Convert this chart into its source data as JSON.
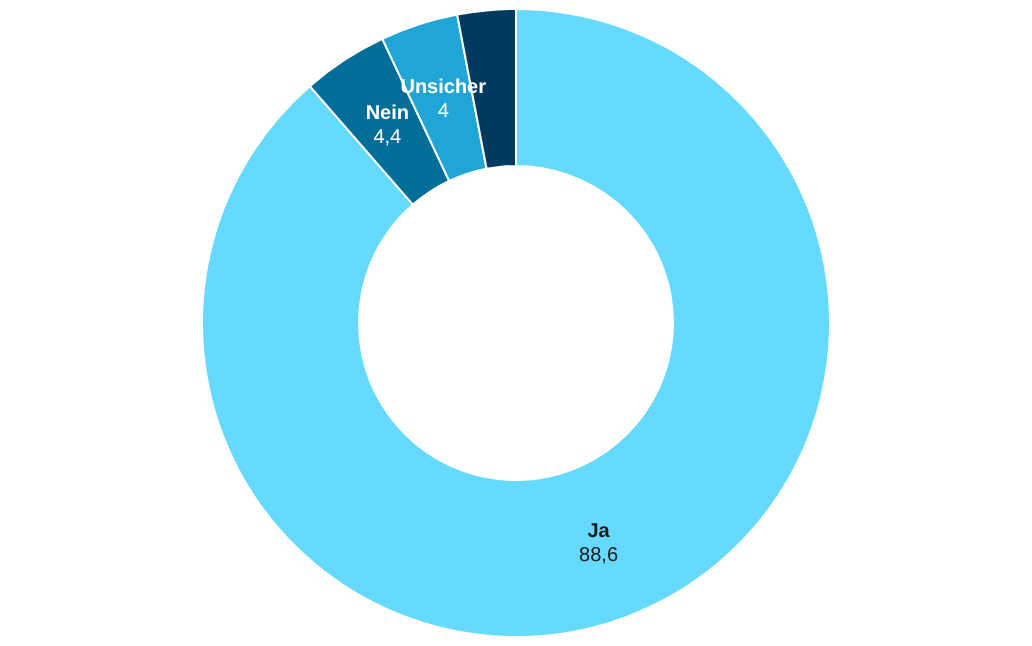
{
  "chart_data": {
    "type": "donut",
    "categories": [
      "Ja",
      "Nein",
      "Unsicher",
      null
    ],
    "values": [
      88.6,
      4.4,
      4,
      3
    ],
    "value_labels": [
      "88,6",
      "4,4",
      "4",
      null
    ],
    "colors": [
      "#66d9ff",
      "#006e99",
      "#1fa5d6",
      "#003a5e"
    ],
    "legend": false
  }
}
